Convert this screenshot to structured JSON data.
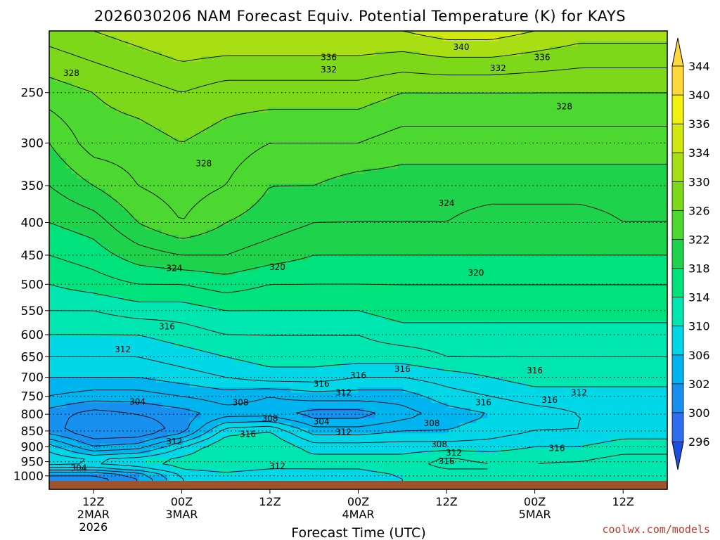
{
  "chart_data": {
    "type": "heatmap",
    "title": "2026030206 NAM Forecast Equiv. Potential Temperature (K) for KAYS",
    "xlabel": "Forecast Time (UTC)",
    "ylabel": "",
    "credit": "coolwx.com/models",
    "y_axis": {
      "scale": "pressure (log)",
      "ylim": [
        1050,
        200
      ],
      "ticks": [
        250,
        300,
        350,
        400,
        450,
        500,
        550,
        600,
        650,
        700,
        750,
        800,
        850,
        900,
        950,
        1000
      ]
    },
    "x_axis": {
      "range_hours": [
        0,
        84
      ],
      "ticks": [
        {
          "hour": 6,
          "line1": "12Z",
          "line2": "2MAR",
          "line3": "2026"
        },
        {
          "hour": 18,
          "line1": "00Z",
          "line2": "3MAR",
          "line3": ""
        },
        {
          "hour": 30,
          "line1": "12Z",
          "line2": "",
          "line3": ""
        },
        {
          "hour": 42,
          "line1": "00Z",
          "line2": "4MAR",
          "line3": ""
        },
        {
          "hour": 54,
          "line1": "12Z",
          "line2": "",
          "line3": ""
        },
        {
          "hour": 66,
          "line1": "00Z",
          "line2": "5MAR",
          "line3": ""
        },
        {
          "hour": 78,
          "line1": "12Z",
          "line2": "",
          "line3": ""
        }
      ]
    },
    "colorbar": {
      "levels": [
        296,
        300,
        302,
        306,
        310,
        314,
        318,
        322,
        326,
        330,
        334,
        336,
        340,
        344
      ],
      "colors": [
        "#1a50e0",
        "#2f6fef",
        "#1890f0",
        "#00b4f0",
        "#00d8e8",
        "#00e6b0",
        "#00e27c",
        "#1ed24c",
        "#4cd830",
        "#7ed81a",
        "#a8de14",
        "#d0e810",
        "#f2f00e",
        "#ffd83a"
      ]
    },
    "contour_labels": [
      {
        "text": "340",
        "hour": 56,
        "p": 212
      },
      {
        "text": "336",
        "hour": 38,
        "p": 220
      },
      {
        "text": "336",
        "hour": 67,
        "p": 220
      },
      {
        "text": "332",
        "hour": 38,
        "p": 230
      },
      {
        "text": "332",
        "hour": 61,
        "p": 229
      },
      {
        "text": "328",
        "hour": 3,
        "p": 233
      },
      {
        "text": "328",
        "hour": 70,
        "p": 263
      },
      {
        "text": "328",
        "hour": 21,
        "p": 323
      },
      {
        "text": "324",
        "hour": 54,
        "p": 373
      },
      {
        "text": "324",
        "hour": 17,
        "p": 472
      },
      {
        "text": "320",
        "hour": 31,
        "p": 470
      },
      {
        "text": "320",
        "hour": 58,
        "p": 480
      },
      {
        "text": "316",
        "hour": 16,
        "p": 583
      },
      {
        "text": "312",
        "hour": 10,
        "p": 633
      },
      {
        "text": "316",
        "hour": 42,
        "p": 695
      },
      {
        "text": "316",
        "hour": 48,
        "p": 680
      },
      {
        "text": "316",
        "hour": 66,
        "p": 683
      },
      {
        "text": "316",
        "hour": 37,
        "p": 717
      },
      {
        "text": "312",
        "hour": 40,
        "p": 740
      },
      {
        "text": "304",
        "hour": 12,
        "p": 765
      },
      {
        "text": "308",
        "hour": 26,
        "p": 767
      },
      {
        "text": "312",
        "hour": 72,
        "p": 740
      },
      {
        "text": "316",
        "hour": 59,
        "p": 767
      },
      {
        "text": "316",
        "hour": 68,
        "p": 760
      },
      {
        "text": "308",
        "hour": 30,
        "p": 813
      },
      {
        "text": "304",
        "hour": 37,
        "p": 822
      },
      {
        "text": "308",
        "hour": 52,
        "p": 827
      },
      {
        "text": "316",
        "hour": 27,
        "p": 860
      },
      {
        "text": "312",
        "hour": 40,
        "p": 853
      },
      {
        "text": "312",
        "hour": 17,
        "p": 883
      },
      {
        "text": "308",
        "hour": 53,
        "p": 892
      },
      {
        "text": "312",
        "hour": 55,
        "p": 920
      },
      {
        "text": "316",
        "hour": 69,
        "p": 905
      },
      {
        "text": "316",
        "hour": 54,
        "p": 948
      },
      {
        "text": "312",
        "hour": 31,
        "p": 965
      },
      {
        "text": "304",
        "hour": 4,
        "p": 972
      }
    ],
    "profiles": [
      {
        "hour": 0,
        "p": [
          1000,
          975,
          950,
          900,
          850,
          800,
          750,
          700,
          650,
          600,
          550,
          500,
          450,
          400,
          350,
          300,
          250,
          200
        ],
        "theta_e": [
          303,
          309,
          314,
          311,
          305,
          305,
          308,
          310,
          312,
          314,
          316,
          318,
          320,
          322,
          324,
          326,
          329,
          333
        ]
      },
      {
        "hour": 6,
        "p": [
          1000,
          975,
          950,
          900,
          850,
          800,
          750,
          700,
          650,
          600,
          550,
          500,
          450,
          400,
          350,
          300,
          250,
          200
        ],
        "theta_e": [
          303,
          309,
          313,
          306,
          302,
          303,
          307,
          310,
          312,
          314,
          316,
          319,
          321,
          323,
          326,
          329,
          330,
          334
        ]
      },
      {
        "hour": 12,
        "p": [
          1000,
          975,
          950,
          900,
          850,
          800,
          750,
          700,
          650,
          600,
          550,
          500,
          450,
          400,
          350,
          300,
          250,
          200
        ],
        "theta_e": [
          306,
          311,
          314,
          307,
          302,
          304,
          307,
          310,
          312,
          314,
          317,
          320,
          323,
          326,
          328,
          329,
          331,
          335
        ]
      },
      {
        "hour": 18,
        "p": [
          1000,
          975,
          950,
          900,
          850,
          800,
          750,
          700,
          650,
          600,
          550,
          500,
          450,
          400,
          350,
          300,
          250,
          200
        ],
        "theta_e": [
          312,
          314,
          315,
          312,
          305,
          305,
          308,
          311,
          313,
          315,
          317,
          320,
          324,
          328,
          329,
          330,
          332,
          336
        ]
      },
      {
        "hour": 24,
        "p": [
          1000,
          975,
          950,
          900,
          850,
          800,
          750,
          700,
          650,
          600,
          550,
          500,
          450,
          400,
          350,
          300,
          250,
          200
        ],
        "theta_e": [
          313,
          315,
          316,
          316,
          313,
          307,
          309,
          312,
          314,
          316,
          318,
          321,
          324,
          326,
          328,
          329,
          331,
          336
        ]
      },
      {
        "hour": 30,
        "p": [
          1000,
          975,
          950,
          900,
          850,
          800,
          750,
          700,
          650,
          600,
          550,
          500,
          450,
          400,
          350,
          300,
          250,
          200
        ],
        "theta_e": [
          312,
          314,
          315,
          316,
          314,
          307,
          308,
          313,
          315,
          316,
          318,
          320,
          323,
          325,
          326,
          328,
          331,
          336
        ]
      },
      {
        "hour": 36,
        "p": [
          1000,
          975,
          950,
          900,
          850,
          800,
          750,
          700,
          650,
          600,
          550,
          500,
          450,
          400,
          350,
          300,
          250,
          200
        ],
        "theta_e": [
          313,
          314,
          315,
          313,
          309,
          305,
          309,
          313,
          315,
          316,
          318,
          320,
          322,
          324,
          326,
          328,
          331,
          336
        ]
      },
      {
        "hour": 42,
        "p": [
          1000,
          975,
          950,
          900,
          850,
          800,
          750,
          700,
          650,
          600,
          550,
          500,
          450,
          400,
          350,
          300,
          250,
          200
        ],
        "theta_e": [
          313,
          314,
          315,
          313,
          309,
          305,
          309,
          312,
          315,
          316,
          318,
          320,
          322,
          324,
          325,
          328,
          331,
          336
        ]
      },
      {
        "hour": 48,
        "p": [
          1000,
          975,
          950,
          900,
          850,
          800,
          750,
          700,
          650,
          600,
          550,
          500,
          450,
          400,
          350,
          300,
          250,
          200
        ],
        "theta_e": [
          314,
          315,
          315,
          313,
          310,
          307,
          309,
          312,
          315,
          317,
          319,
          320,
          322,
          324,
          325,
          327,
          330,
          336
        ]
      },
      {
        "hour": 54,
        "p": [
          1000,
          975,
          950,
          900,
          850,
          800,
          750,
          700,
          650,
          600,
          550,
          500,
          450,
          400,
          350,
          300,
          250,
          200
        ],
        "theta_e": [
          315,
          316,
          317,
          313,
          310,
          309,
          311,
          313,
          316,
          317,
          319,
          320,
          322,
          324,
          325,
          327,
          330,
          337
        ]
      },
      {
        "hour": 60,
        "p": [
          1000,
          975,
          950,
          900,
          850,
          800,
          750,
          700,
          650,
          600,
          550,
          500,
          450,
          400,
          350,
          300,
          250,
          200
        ],
        "theta_e": [
          316,
          316,
          316,
          313,
          311,
          310,
          312,
          314,
          316,
          317,
          319,
          320,
          322,
          323,
          325,
          327,
          330,
          337
        ]
      },
      {
        "hour": 66,
        "p": [
          1000,
          975,
          950,
          900,
          850,
          800,
          750,
          700,
          650,
          600,
          550,
          500,
          450,
          400,
          350,
          300,
          250,
          200
        ],
        "theta_e": [
          316,
          316,
          316,
          314,
          312,
          311,
          313,
          315,
          316,
          317,
          319,
          320,
          322,
          323,
          325,
          327,
          330,
          336
        ]
      },
      {
        "hour": 72,
        "p": [
          1000,
          975,
          950,
          900,
          850,
          800,
          750,
          700,
          650,
          600,
          550,
          500,
          450,
          400,
          350,
          300,
          250,
          200
        ],
        "theta_e": [
          317,
          317,
          316,
          314,
          312,
          312,
          313,
          315,
          316,
          317,
          319,
          320,
          322,
          323,
          325,
          327,
          330,
          335
        ]
      },
      {
        "hour": 78,
        "p": [
          1000,
          975,
          950,
          900,
          850,
          800,
          750,
          700,
          650,
          600,
          550,
          500,
          450,
          400,
          350,
          300,
          250,
          200
        ],
        "theta_e": [
          317,
          317,
          317,
          315,
          313,
          312,
          313,
          315,
          316,
          317,
          319,
          320,
          322,
          324,
          325,
          327,
          330,
          335
        ]
      },
      {
        "hour": 84,
        "p": [
          1000,
          975,
          950,
          900,
          850,
          800,
          750,
          700,
          650,
          600,
          550,
          500,
          450,
          400,
          350,
          300,
          250,
          200
        ],
        "theta_e": [
          317,
          317,
          317,
          315,
          313,
          312,
          313,
          315,
          316,
          317,
          319,
          320,
          322,
          324,
          325,
          327,
          330,
          335
        ]
      }
    ]
  }
}
